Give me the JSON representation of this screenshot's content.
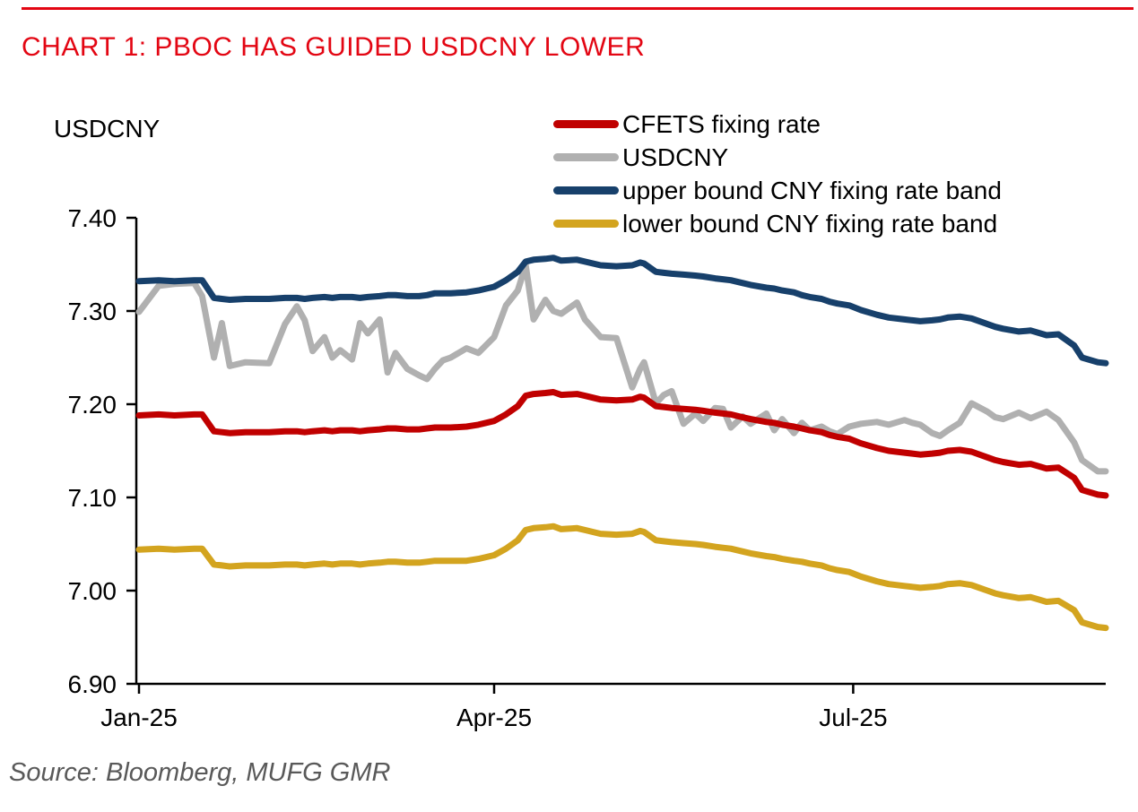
{
  "page": {
    "title": "CHART 1: PBOC HAS GUIDED USDCNY LOWER",
    "source": "Source: Bloomberg, MUFG GMR",
    "accent_red": "#E30613",
    "source_color": "#595959"
  },
  "chart_data": {
    "type": "line",
    "title": "CHART 1: PBOC HAS GUIDED USDCNY LOWER",
    "ylabel": "USDCNY",
    "ylim": [
      6.9,
      7.4
    ],
    "grid": false,
    "legend_position": "top-right",
    "y_ticks": [
      "7.40",
      "7.30",
      "7.20",
      "7.10",
      "7.00",
      "6.90"
    ],
    "x_ticks": [
      {
        "label": "Jan-25",
        "day": 0
      },
      {
        "label": "Apr-25",
        "day": 90
      },
      {
        "label": "Jul-25",
        "day": 181
      }
    ],
    "x_span_days": 245,
    "dates": [
      "Jan-01",
      "Jan-06",
      "Jan-10",
      "Jan-15",
      "Jan-17",
      "Jan-20",
      "Jan-22",
      "Jan-24",
      "Jan-28",
      "Feb-03",
      "Feb-07",
      "Feb-10",
      "Feb-12",
      "Feb-14",
      "Feb-17",
      "Feb-19",
      "Feb-21",
      "Feb-24",
      "Feb-26",
      "Feb-28",
      "Mar-03",
      "Mar-05",
      "Mar-07",
      "Mar-10",
      "Mar-13",
      "Mar-15",
      "Mar-17",
      "Mar-19",
      "Mar-21",
      "Mar-25",
      "Mar-28",
      "Apr-01",
      "Apr-04",
      "Apr-07",
      "Apr-09",
      "Apr-11",
      "Apr-14",
      "Apr-16",
      "Apr-18",
      "Apr-22",
      "Apr-24",
      "Apr-28",
      "May-02",
      "May-06",
      "May-08",
      "May-09",
      "May-12",
      "May-14",
      "May-16",
      "May-19",
      "May-22",
      "May-24",
      "May-27",
      "May-29",
      "May-31",
      "Jun-03",
      "Jun-05",
      "Jun-09",
      "Jun-11",
      "Jun-13",
      "Jun-16",
      "Jun-18",
      "Jun-20",
      "Jun-23",
      "Jun-25",
      "Jun-27",
      "Jun-30",
      "Jul-03",
      "Jul-07",
      "Jul-10",
      "Jul-14",
      "Jul-16",
      "Jul-18",
      "Jul-21",
      "Jul-23",
      "Jul-25",
      "Jul-28",
      "Jul-31",
      "Aug-04",
      "Aug-06",
      "Aug-08",
      "Aug-12",
      "Aug-15",
      "Aug-19",
      "Aug-22",
      "Aug-26",
      "Aug-28",
      "Sep-01",
      "Sep-03"
    ],
    "day_offsets": [
      0,
      5,
      9,
      14,
      16,
      19,
      21,
      23,
      27,
      33,
      37,
      40,
      42,
      44,
      47,
      49,
      51,
      54,
      56,
      58,
      61,
      63,
      65,
      68,
      71,
      73,
      75,
      77,
      79,
      83,
      86,
      90,
      93,
      96,
      98,
      100,
      103,
      105,
      107,
      111,
      113,
      117,
      121,
      125,
      127,
      128,
      131,
      133,
      135,
      138,
      141,
      143,
      146,
      148,
      150,
      153,
      155,
      159,
      161,
      163,
      166,
      168,
      170,
      173,
      175,
      177,
      180,
      183,
      187,
      190,
      194,
      196,
      198,
      201,
      203,
      205,
      208,
      211,
      215,
      217,
      219,
      223,
      226,
      230,
      233,
      237,
      239,
      243,
      245
    ],
    "series": [
      {
        "name": "CFETS fixing rate",
        "color": "#C00000",
        "values": [
          7.188,
          7.189,
          7.188,
          7.189,
          7.189,
          7.171,
          7.17,
          7.169,
          7.17,
          7.17,
          7.171,
          7.171,
          7.17,
          7.171,
          7.172,
          7.171,
          7.172,
          7.172,
          7.171,
          7.172,
          7.173,
          7.174,
          7.174,
          7.173,
          7.173,
          7.174,
          7.175,
          7.175,
          7.175,
          7.176,
          7.178,
          7.182,
          7.189,
          7.198,
          7.209,
          7.211,
          7.212,
          7.213,
          7.21,
          7.211,
          7.209,
          7.205,
          7.204,
          7.205,
          7.208,
          7.207,
          7.198,
          7.197,
          7.196,
          7.195,
          7.194,
          7.193,
          7.191,
          7.19,
          7.189,
          7.186,
          7.184,
          7.181,
          7.18,
          7.178,
          7.176,
          7.174,
          7.172,
          7.17,
          7.167,
          7.165,
          7.163,
          7.158,
          7.153,
          7.15,
          7.148,
          7.147,
          7.146,
          7.147,
          7.148,
          7.15,
          7.151,
          7.149,
          7.143,
          7.14,
          7.138,
          7.135,
          7.136,
          7.131,
          7.132,
          7.121,
          7.108,
          7.103,
          7.102
        ]
      },
      {
        "name": "USDCNY",
        "color": "#B0B0B0",
        "values": [
          7.299,
          7.327,
          7.329,
          7.33,
          7.316,
          7.25,
          7.287,
          7.241,
          7.245,
          7.244,
          7.286,
          7.305,
          7.29,
          7.257,
          7.272,
          7.25,
          7.258,
          7.248,
          7.287,
          7.276,
          7.291,
          7.234,
          7.255,
          7.238,
          7.231,
          7.227,
          7.238,
          7.247,
          7.25,
          7.26,
          7.255,
          7.272,
          7.306,
          7.322,
          7.349,
          7.291,
          7.312,
          7.3,
          7.297,
          7.309,
          7.291,
          7.272,
          7.271,
          7.218,
          7.238,
          7.245,
          7.201,
          7.21,
          7.214,
          7.179,
          7.19,
          7.182,
          7.196,
          7.195,
          7.175,
          7.187,
          7.179,
          7.19,
          7.172,
          7.184,
          7.169,
          7.18,
          7.172,
          7.176,
          7.171,
          7.168,
          7.176,
          7.179,
          7.181,
          7.178,
          7.183,
          7.18,
          7.178,
          7.169,
          7.166,
          7.172,
          7.18,
          7.201,
          7.192,
          7.186,
          7.184,
          7.191,
          7.185,
          7.192,
          7.183,
          7.159,
          7.14,
          7.128,
          7.128
        ]
      },
      {
        "name": "upper bound CNY fixing rate band",
        "color": "#17406B",
        "values": [
          7.332,
          7.333,
          7.332,
          7.333,
          7.333,
          7.314,
          7.313,
          7.312,
          7.313,
          7.313,
          7.314,
          7.314,
          7.313,
          7.314,
          7.315,
          7.314,
          7.315,
          7.315,
          7.314,
          7.315,
          7.316,
          7.317,
          7.317,
          7.316,
          7.316,
          7.317,
          7.319,
          7.319,
          7.319,
          7.32,
          7.322,
          7.326,
          7.333,
          7.342,
          7.353,
          7.355,
          7.356,
          7.357,
          7.354,
          7.355,
          7.353,
          7.349,
          7.348,
          7.349,
          7.352,
          7.351,
          7.342,
          7.341,
          7.34,
          7.339,
          7.338,
          7.337,
          7.335,
          7.334,
          7.333,
          7.33,
          7.328,
          7.325,
          7.324,
          7.322,
          7.32,
          7.317,
          7.315,
          7.313,
          7.31,
          7.308,
          7.306,
          7.301,
          7.296,
          7.293,
          7.291,
          7.29,
          7.289,
          7.29,
          7.291,
          7.293,
          7.294,
          7.292,
          7.286,
          7.283,
          7.281,
          7.278,
          7.279,
          7.274,
          7.275,
          7.263,
          7.25,
          7.245,
          7.244
        ]
      },
      {
        "name": "lower bound CNY fixing rate band",
        "color": "#D3A41F",
        "values": [
          7.044,
          7.045,
          7.044,
          7.045,
          7.045,
          7.028,
          7.027,
          7.026,
          7.027,
          7.027,
          7.028,
          7.028,
          7.027,
          7.028,
          7.029,
          7.028,
          7.029,
          7.029,
          7.028,
          7.029,
          7.03,
          7.031,
          7.031,
          7.03,
          7.03,
          7.031,
          7.032,
          7.032,
          7.032,
          7.032,
          7.034,
          7.038,
          7.045,
          7.054,
          7.065,
          7.067,
          7.068,
          7.069,
          7.066,
          7.067,
          7.065,
          7.061,
          7.06,
          7.061,
          7.064,
          7.063,
          7.054,
          7.053,
          7.052,
          7.051,
          7.05,
          7.049,
          7.047,
          7.046,
          7.045,
          7.042,
          7.04,
          7.037,
          7.036,
          7.034,
          7.032,
          7.031,
          7.029,
          7.027,
          7.024,
          7.022,
          7.02,
          7.015,
          7.01,
          7.007,
          7.005,
          7.004,
          7.003,
          7.004,
          7.005,
          7.007,
          7.008,
          7.006,
          7.0,
          6.997,
          6.995,
          6.992,
          6.993,
          6.988,
          6.989,
          6.979,
          6.966,
          6.961,
          6.96
        ]
      }
    ]
  }
}
